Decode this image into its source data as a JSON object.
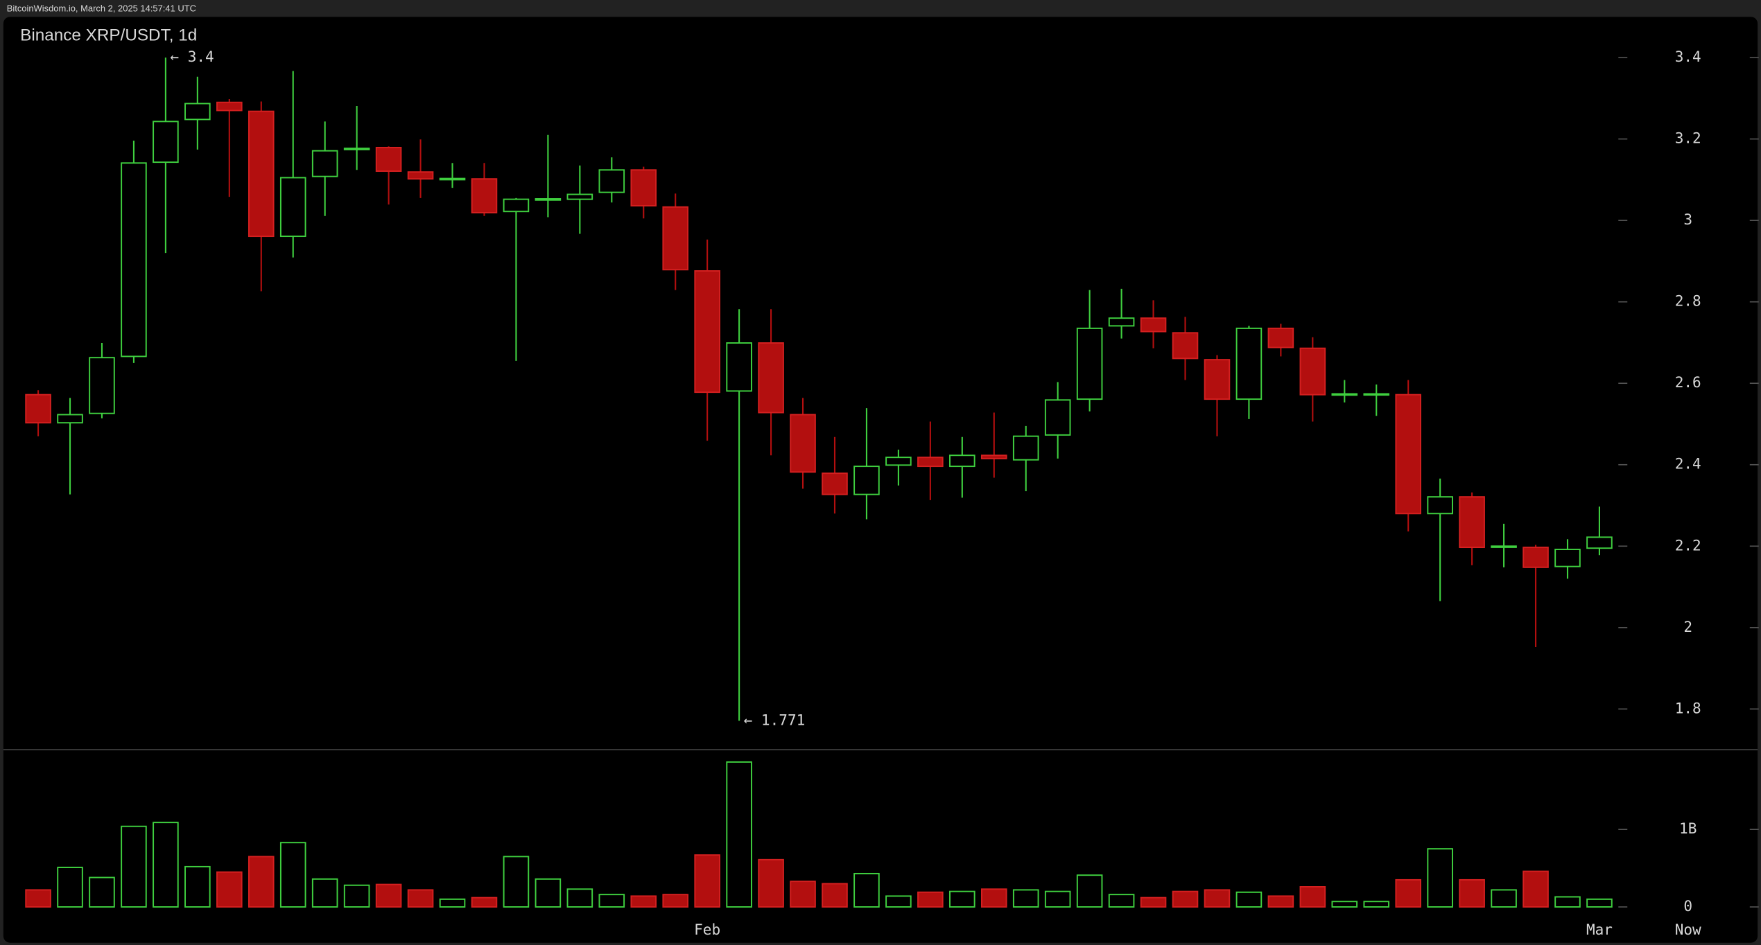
{
  "header": "BitcoinWisdom.io, March 2, 2025 14:57:41 UTC",
  "chart_data": [
    {
      "type": "candlestick",
      "title": "Binance XRP/USDT, 1d",
      "categories": [
        null,
        null,
        null,
        null,
        null,
        null,
        null,
        null,
        null,
        null,
        null,
        null,
        null,
        null,
        null,
        null,
        null,
        null,
        null,
        null,
        null,
        "Feb",
        null,
        null,
        null,
        null,
        null,
        null,
        null,
        null,
        null,
        null,
        null,
        null,
        null,
        null,
        null,
        null,
        null,
        null,
        null,
        null,
        null,
        null,
        null,
        null,
        null,
        null,
        null,
        "Mar"
      ],
      "open": [
        2.572,
        2.503,
        2.526,
        2.666,
        3.143,
        3.248,
        3.29,
        3.268,
        2.961,
        3.108,
        3.174,
        3.179,
        3.119,
        3.1,
        3.102,
        3.022,
        3.05,
        3.052,
        3.069,
        3.124,
        3.033,
        2.876,
        2.581,
        2.699,
        2.523,
        2.379,
        2.327,
        2.399,
        2.418,
        2.396,
        2.423,
        2.412,
        2.473,
        2.561,
        2.741,
        2.76,
        2.724,
        2.658,
        2.561,
        2.735,
        2.686,
        2.571,
        2.572,
        2.572,
        2.28,
        2.321,
        2.198,
        2.197,
        2.15,
        2.195
      ],
      "high": [
        2.583,
        2.564,
        2.699,
        3.196,
        3.4,
        3.353,
        3.298,
        3.292,
        3.367,
        3.243,
        3.281,
        3.182,
        3.199,
        3.141,
        3.141,
        3.055,
        3.21,
        3.135,
        3.155,
        3.132,
        3.066,
        2.953,
        2.782,
        2.782,
        2.564,
        2.468,
        2.539,
        2.437,
        2.506,
        2.468,
        2.528,
        2.495,
        2.603,
        2.829,
        2.832,
        2.804,
        2.763,
        2.669,
        2.741,
        2.746,
        2.713,
        2.608,
        2.597,
        2.608,
        2.366,
        2.332,
        2.255,
        2.203,
        2.217,
        2.297
      ],
      "low": [
        2.47,
        2.327,
        2.514,
        2.65,
        2.92,
        3.174,
        3.058,
        2.826,
        2.909,
        3.011,
        3.124,
        3.039,
        3.055,
        3.08,
        3.011,
        2.655,
        3.008,
        2.967,
        3.044,
        3.005,
        2.829,
        2.459,
        1.771,
        2.423,
        2.341,
        2.28,
        2.266,
        2.349,
        2.313,
        2.319,
        2.368,
        2.335,
        2.415,
        2.531,
        2.71,
        2.686,
        2.608,
        2.47,
        2.512,
        2.666,
        2.506,
        2.553,
        2.52,
        2.236,
        2.065,
        2.153,
        2.148,
        1.952,
        2.12,
        2.178
      ],
      "close": [
        2.503,
        2.523,
        2.663,
        3.141,
        3.243,
        3.287,
        3.27,
        2.961,
        3.105,
        3.171,
        3.177,
        3.121,
        3.102,
        3.103,
        3.019,
        3.052,
        3.053,
        3.064,
        3.124,
        3.036,
        2.879,
        2.578,
        2.699,
        2.528,
        2.382,
        2.327,
        2.396,
        2.418,
        2.396,
        2.423,
        2.415,
        2.47,
        2.559,
        2.735,
        2.76,
        2.727,
        2.661,
        2.561,
        2.735,
        2.688,
        2.572,
        2.574,
        2.574,
        2.28,
        2.321,
        2.197,
        2.2,
        2.148,
        2.192,
        2.222
      ],
      "up_color": "#3fcf3f",
      "down_color": "#b30f0f",
      "ylim": [
        1.7,
        3.5
      ],
      "yticks": [
        1.8,
        2,
        2.2,
        2.4,
        2.6,
        2.8,
        3,
        3.2,
        3.4
      ],
      "annotations": [
        {
          "value": 3.4,
          "label": "← 3.4"
        },
        {
          "value": 1.771,
          "label": "← 1.771"
        }
      ],
      "now_label": "Now"
    },
    {
      "type": "bar",
      "values": [
        0.22,
        0.51,
        0.38,
        1.04,
        1.09,
        0.52,
        0.45,
        0.65,
        0.83,
        0.36,
        0.28,
        0.29,
        0.22,
        0.1,
        0.12,
        0.65,
        0.36,
        0.23,
        0.16,
        0.14,
        0.16,
        0.67,
        1.87,
        0.61,
        0.33,
        0.3,
        0.43,
        0.14,
        0.19,
        0.2,
        0.23,
        0.22,
        0.2,
        0.41,
        0.16,
        0.12,
        0.2,
        0.22,
        0.19,
        0.14,
        0.26,
        0.07,
        0.07,
        0.35,
        0.75,
        0.35,
        0.22,
        0.46,
        0.13,
        0.1
      ],
      "ylim": [
        -0.1,
        2
      ],
      "yticks": [
        0,
        {
          "value": 1,
          "label": "1B"
        }
      ]
    }
  ]
}
